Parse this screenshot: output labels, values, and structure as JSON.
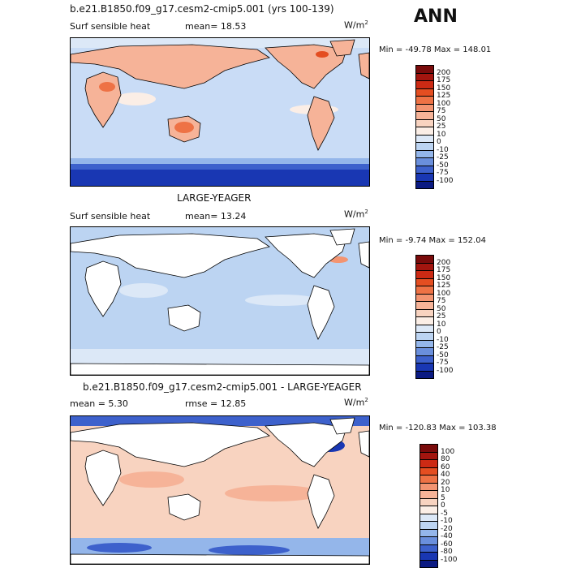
{
  "season": "ANN",
  "panels": [
    {
      "title": "b.e21.B1850.f09_g17.cesm2-cmip5.001 (yrs 100-139)",
      "variable": "Surf sensible heat",
      "stat_left": "mean=  18.53",
      "stat_right": "",
      "units": "W/m",
      "units_exp": "2",
      "minmax": "Min = -49.78 Max = 148.01",
      "colorbar": {
        "labels": [
          "200",
          "175",
          "150",
          "125",
          "100",
          "75",
          "50",
          "25",
          "10",
          "0",
          "-10",
          "-25",
          "-50",
          "-75",
          "-100"
        ],
        "colors": [
          "#7a0b0b",
          "#a3150f",
          "#cc2a14",
          "#e44e21",
          "#ee7245",
          "#f39471",
          "#f6b398",
          "#f8d3c0",
          "#fbeee6",
          "#dce8f7",
          "#bcd4f2",
          "#94b6ea",
          "#6a8fdc",
          "#3d61cc",
          "#1937b3",
          "#0b1a82"
        ]
      },
      "map": {
        "background": "#c9dcf6",
        "land": "#f6d8c7"
      }
    },
    {
      "title": "LARGE-YEAGER",
      "variable": "Surf sensible heat",
      "stat_left": "mean=  13.24",
      "stat_right": "",
      "units": "W/m",
      "units_exp": "2",
      "minmax": "Min =  -9.74 Max = 152.04",
      "colorbar": {
        "labels": [
          "200",
          "175",
          "150",
          "125",
          "100",
          "75",
          "50",
          "25",
          "10",
          "0",
          "-10",
          "-25",
          "-50",
          "-75",
          "-100"
        ],
        "colors": [
          "#7a0b0b",
          "#a3150f",
          "#cc2a14",
          "#e44e21",
          "#ee7245",
          "#f39471",
          "#f6b398",
          "#f8d3c0",
          "#fbeee6",
          "#dce8f7",
          "#bcd4f2",
          "#94b6ea",
          "#6a8fdc",
          "#3d61cc",
          "#1937b3",
          "#0b1a82"
        ]
      },
      "map": {
        "background": "#bcd4f2",
        "land": "#ffffff"
      }
    },
    {
      "title": "b.e21.B1850.f09_g17.cesm2-cmip5.001 - LARGE-YEAGER",
      "variable": "",
      "stat_left": "mean =   5.30",
      "stat_right": "rmse =  12.85",
      "units": "W/m",
      "units_exp": "2",
      "minmax": "Min = -120.83 Max = 103.38",
      "colorbar": {
        "labels": [
          "100",
          "80",
          "60",
          "40",
          "20",
          "10",
          "5",
          "0",
          "-5",
          "-10",
          "-20",
          "-40",
          "-60",
          "-80",
          "-100"
        ],
        "colors": [
          "#7a0b0b",
          "#a3150f",
          "#cc2a14",
          "#e44e21",
          "#ee7245",
          "#f39471",
          "#f6b398",
          "#f8d3c0",
          "#fbeee6",
          "#dce8f7",
          "#bcd4f2",
          "#94b6ea",
          "#6a8fdc",
          "#3d61cc",
          "#1937b3",
          "#0b1a82"
        ]
      },
      "map": {
        "background": "#f8d3c0",
        "land": "#ffffff"
      }
    }
  ]
}
